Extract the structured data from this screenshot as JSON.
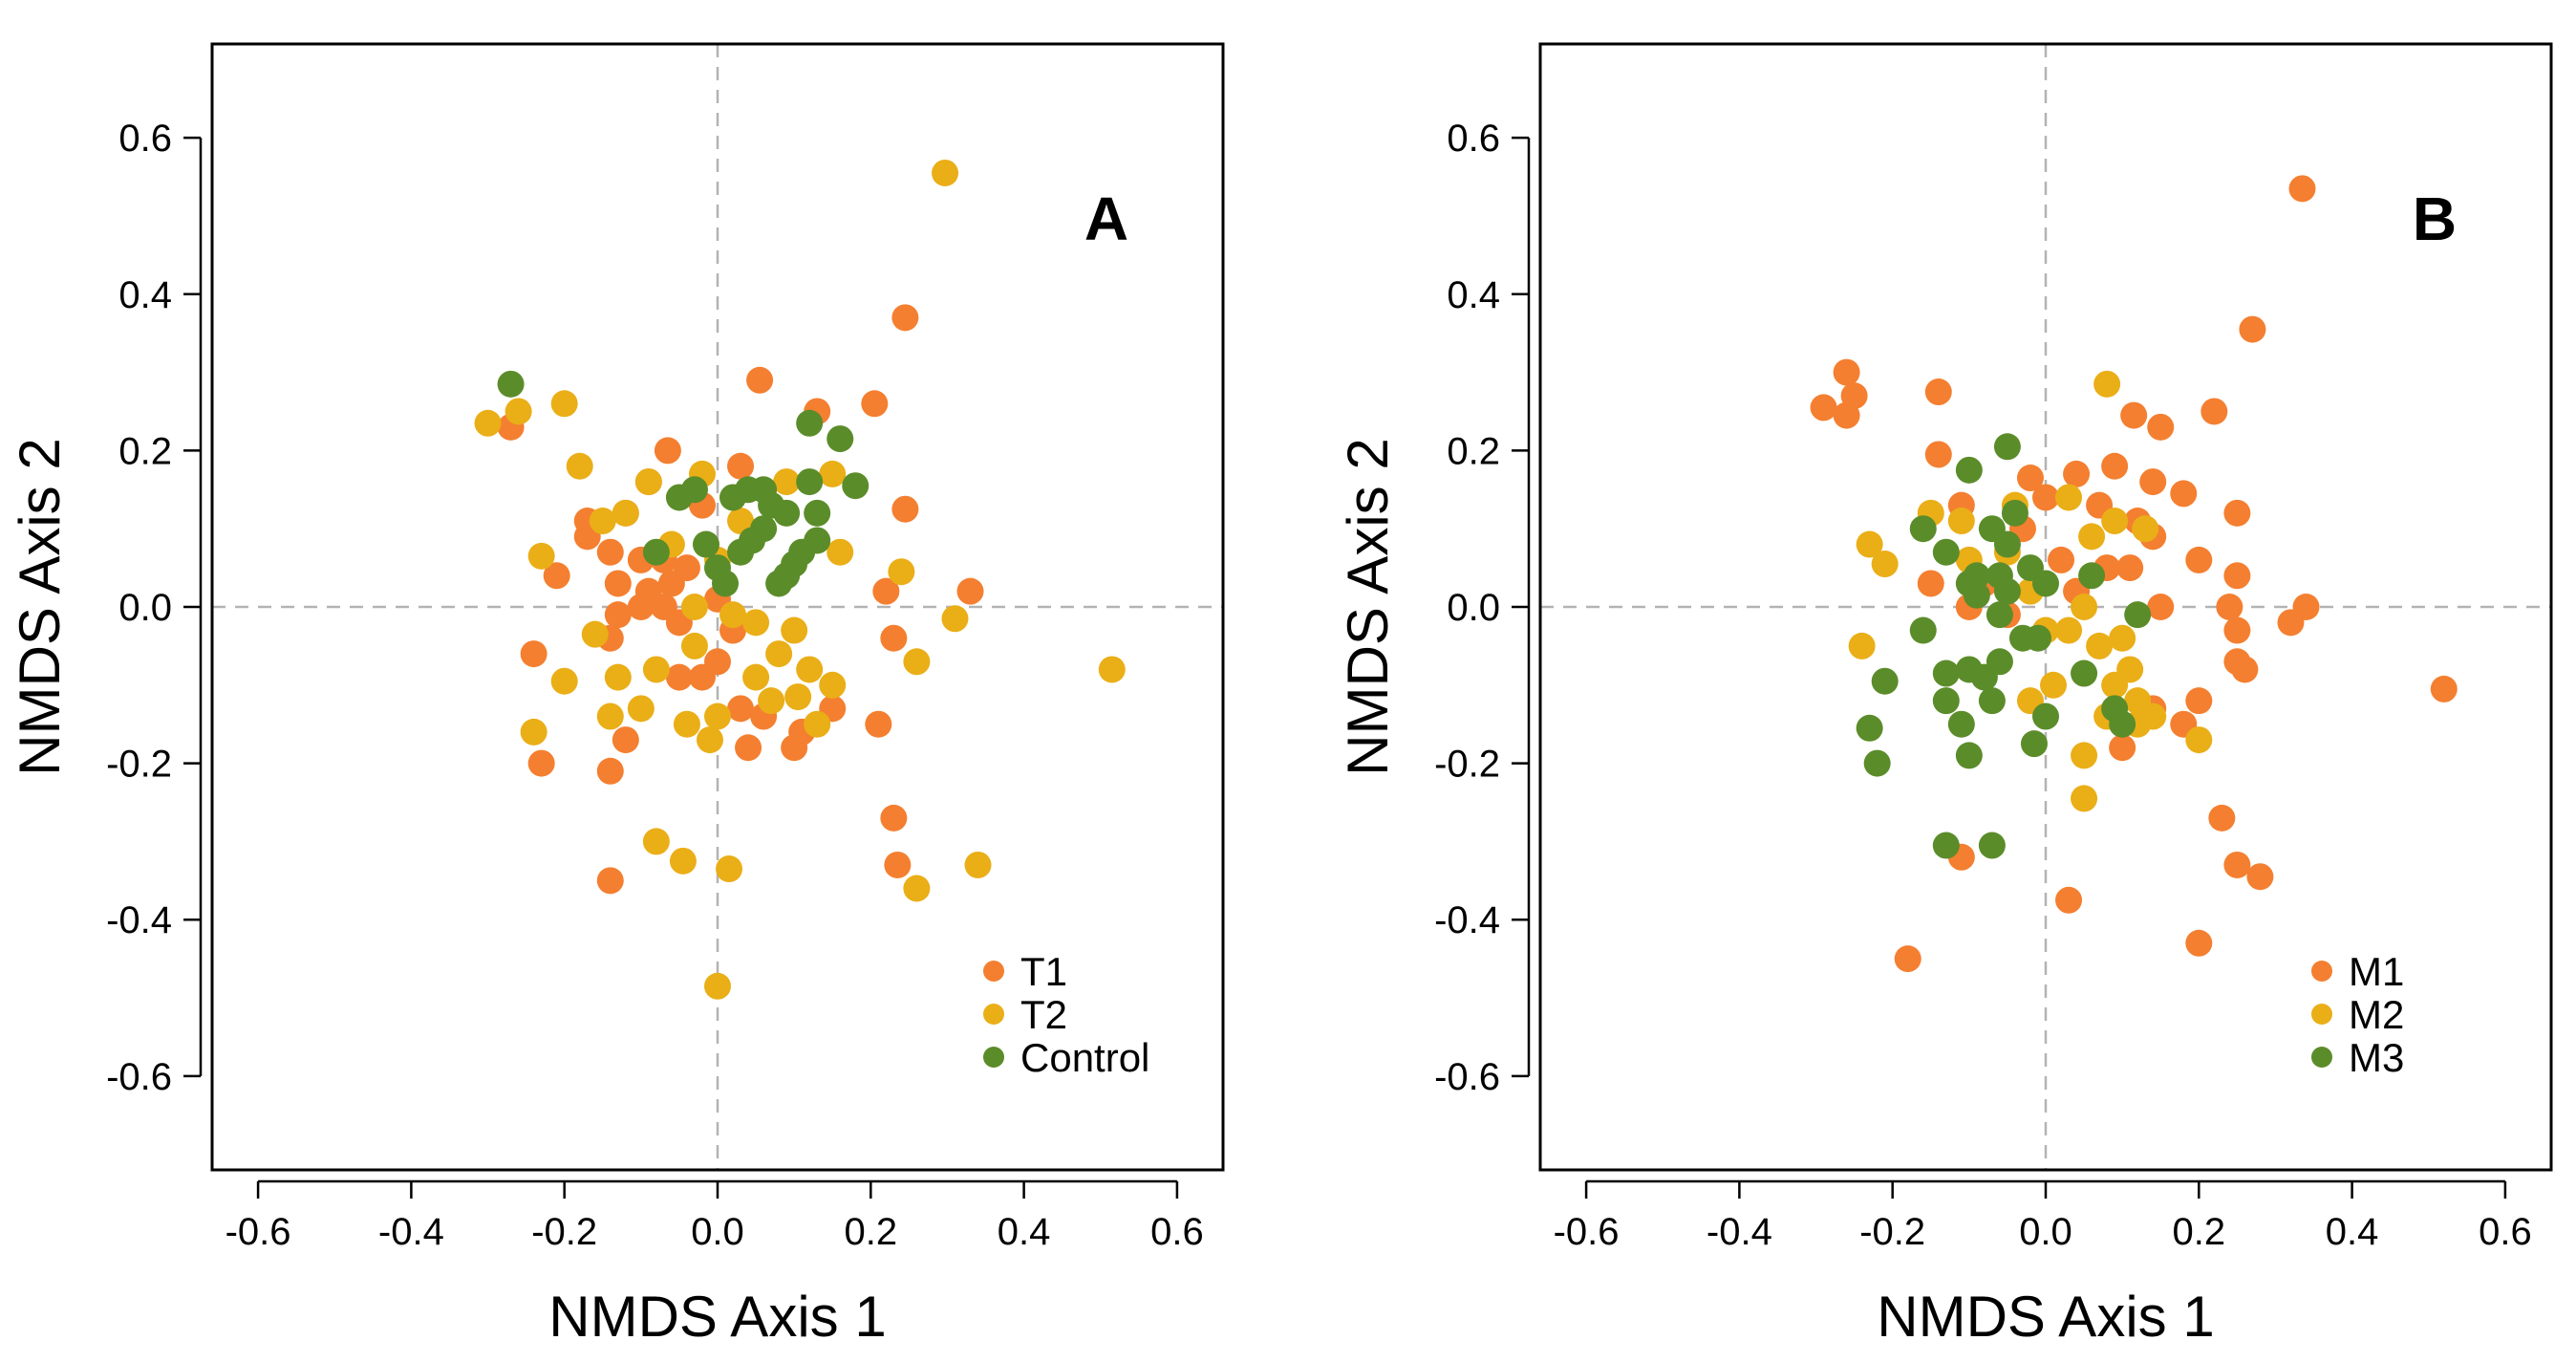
{
  "chart_data": [
    {
      "type": "scatter",
      "panel_label": "A",
      "xlabel": "NMDS Axis 1",
      "ylabel": "NMDS Axis 2",
      "xlim": [
        -0.66,
        0.66
      ],
      "ylim": [
        -0.72,
        0.72
      ],
      "xticks": [
        -0.6,
        -0.4,
        -0.2,
        0.0,
        0.2,
        0.4,
        0.6
      ],
      "yticks": [
        -0.6,
        -0.4,
        -0.2,
        0.0,
        0.2,
        0.4,
        0.6
      ],
      "xtick_labels": [
        "-0.6",
        "-0.4",
        "-0.2",
        "0.0",
        "0.2",
        "0.4",
        "0.6"
      ],
      "ytick_labels": [
        "-0.6",
        "-0.4",
        "-0.2",
        "0.0",
        "0.2",
        "0.4",
        "0.6"
      ],
      "reference_lines": {
        "x": 0,
        "y": 0
      },
      "legend_position": "bottom-right",
      "series": [
        {
          "name": "T1",
          "color": "#F47F30",
          "points": [
            [
              0.245,
              0.37
            ],
            [
              0.055,
              0.29
            ],
            [
              0.205,
              0.26
            ],
            [
              0.13,
              0.25
            ],
            [
              -0.065,
              0.2
            ],
            [
              -0.27,
              0.23
            ],
            [
              -0.09,
              0.16
            ],
            [
              -0.02,
              0.13
            ],
            [
              0.03,
              0.18
            ],
            [
              -0.17,
              0.11
            ],
            [
              -0.12,
              0.12
            ],
            [
              -0.17,
              0.09
            ],
            [
              -0.14,
              0.07
            ],
            [
              -0.1,
              0.06
            ],
            [
              -0.07,
              0.06
            ],
            [
              -0.04,
              0.05
            ],
            [
              -0.21,
              0.04
            ],
            [
              -0.13,
              0.03
            ],
            [
              -0.09,
              0.02
            ],
            [
              -0.06,
              0.03
            ],
            [
              -0.1,
              0.0
            ],
            [
              -0.07,
              0.0
            ],
            [
              -0.13,
              -0.01
            ],
            [
              -0.05,
              -0.02
            ],
            [
              -0.14,
              -0.04
            ],
            [
              -0.05,
              -0.09
            ],
            [
              -0.02,
              -0.09
            ],
            [
              0.0,
              -0.07
            ],
            [
              0.03,
              -0.13
            ],
            [
              0.06,
              -0.14
            ],
            [
              0.11,
              -0.16
            ],
            [
              0.15,
              -0.13
            ],
            [
              0.21,
              -0.15
            ],
            [
              0.23,
              -0.04
            ],
            [
              0.22,
              0.02
            ],
            [
              0.245,
              0.125
            ],
            [
              0.33,
              0.02
            ],
            [
              -0.24,
              -0.06
            ],
            [
              -0.23,
              -0.2
            ],
            [
              -0.14,
              -0.21
            ],
            [
              -0.12,
              -0.17
            ],
            [
              0.04,
              -0.18
            ],
            [
              0.1,
              -0.18
            ],
            [
              -0.14,
              -0.35
            ],
            [
              0.23,
              -0.27
            ],
            [
              0.235,
              -0.33
            ],
            [
              0.0,
              0.01
            ],
            [
              0.02,
              -0.03
            ]
          ]
        },
        {
          "name": "T2",
          "color": "#EAAE17",
          "points": [
            [
              0.297,
              0.555
            ],
            [
              -0.3,
              0.235
            ],
            [
              -0.2,
              0.26
            ],
            [
              -0.26,
              0.25
            ],
            [
              -0.18,
              0.18
            ],
            [
              -0.15,
              0.11
            ],
            [
              -0.12,
              0.12
            ],
            [
              -0.06,
              0.08
            ],
            [
              -0.09,
              0.16
            ],
            [
              -0.02,
              0.17
            ],
            [
              0.0,
              0.06
            ],
            [
              0.03,
              0.11
            ],
            [
              0.09,
              0.16
            ],
            [
              0.15,
              0.17
            ],
            [
              0.16,
              0.07
            ],
            [
              -0.23,
              0.065
            ],
            [
              0.02,
              -0.01
            ],
            [
              -0.16,
              -0.035
            ],
            [
              -0.13,
              -0.09
            ],
            [
              -0.08,
              -0.08
            ],
            [
              -0.1,
              -0.13
            ],
            [
              -0.04,
              -0.15
            ],
            [
              0.0,
              -0.14
            ],
            [
              -0.01,
              -0.17
            ],
            [
              -0.03,
              -0.05
            ],
            [
              0.05,
              -0.02
            ],
            [
              0.08,
              -0.06
            ],
            [
              0.1,
              -0.03
            ],
            [
              0.12,
              -0.08
            ],
            [
              0.15,
              -0.1
            ],
            [
              0.07,
              -0.12
            ],
            [
              0.13,
              -0.15
            ],
            [
              0.05,
              -0.09
            ],
            [
              0.24,
              0.045
            ],
            [
              0.26,
              -0.07
            ],
            [
              0.31,
              -0.015
            ],
            [
              0.515,
              -0.08
            ],
            [
              -0.24,
              -0.16
            ],
            [
              -0.2,
              -0.095
            ],
            [
              -0.14,
              -0.14
            ],
            [
              -0.08,
              -0.3
            ],
            [
              -0.045,
              -0.325
            ],
            [
              0.015,
              -0.335
            ],
            [
              0.26,
              -0.36
            ],
            [
              0.34,
              -0.33
            ],
            [
              0.0,
              -0.485
            ],
            [
              0.105,
              -0.115
            ],
            [
              -0.03,
              0.0
            ]
          ]
        },
        {
          "name": "Control",
          "color": "#5B8C2A",
          "points": [
            [
              -0.27,
              0.285
            ],
            [
              0.12,
              0.235
            ],
            [
              0.16,
              0.215
            ],
            [
              0.18,
              0.155
            ],
            [
              0.12,
              0.16
            ],
            [
              0.13,
              0.12
            ],
            [
              0.09,
              0.12
            ],
            [
              0.07,
              0.13
            ],
            [
              0.04,
              0.15
            ],
            [
              0.06,
              0.1
            ],
            [
              0.03,
              0.07
            ],
            [
              0.0,
              0.05
            ],
            [
              0.01,
              0.03
            ],
            [
              -0.05,
              0.14
            ],
            [
              -0.08,
              0.07
            ],
            [
              0.09,
              0.04
            ],
            [
              0.11,
              0.07
            ],
            [
              0.06,
              0.15
            ],
            [
              -0.03,
              0.15
            ],
            [
              0.02,
              0.14
            ],
            [
              0.13,
              0.085
            ],
            [
              0.1,
              0.055
            ],
            [
              0.08,
              0.03
            ],
            [
              0.045,
              0.085
            ],
            [
              -0.015,
              0.08
            ]
          ]
        }
      ]
    },
    {
      "type": "scatter",
      "panel_label": "B",
      "xlabel": "NMDS Axis 1",
      "ylabel": "NMDS Axis 2",
      "xlim": [
        -0.66,
        0.66
      ],
      "ylim": [
        -0.72,
        0.72
      ],
      "xticks": [
        -0.6,
        -0.4,
        -0.2,
        0.0,
        0.2,
        0.4,
        0.6
      ],
      "yticks": [
        -0.6,
        -0.4,
        -0.2,
        0.0,
        0.2,
        0.4,
        0.6
      ],
      "xtick_labels": [
        "-0.6",
        "-0.4",
        "-0.2",
        "0.0",
        "0.2",
        "0.4",
        "0.6"
      ],
      "ytick_labels": [
        "-0.6",
        "-0.4",
        "-0.2",
        "0.0",
        "0.2",
        "0.4",
        "0.6"
      ],
      "reference_lines": {
        "x": 0,
        "y": 0
      },
      "legend_position": "bottom-right",
      "series": [
        {
          "name": "M1",
          "color": "#F47F30",
          "points": [
            [
              0.335,
              0.535
            ],
            [
              0.27,
              0.355
            ],
            [
              -0.26,
              0.3
            ],
            [
              -0.25,
              0.27
            ],
            [
              -0.29,
              0.255
            ],
            [
              -0.26,
              0.245
            ],
            [
              -0.14,
              0.275
            ],
            [
              0.115,
              0.245
            ],
            [
              0.15,
              0.23
            ],
            [
              0.22,
              0.25
            ],
            [
              -0.14,
              0.195
            ],
            [
              -0.02,
              0.165
            ],
            [
              0.04,
              0.17
            ],
            [
              0.09,
              0.18
            ],
            [
              0.14,
              0.16
            ],
            [
              0.18,
              0.145
            ],
            [
              0.25,
              0.12
            ],
            [
              -0.11,
              0.13
            ],
            [
              0.0,
              0.14
            ],
            [
              0.07,
              0.13
            ],
            [
              0.12,
              0.11
            ],
            [
              0.14,
              0.09
            ],
            [
              -0.03,
              0.1
            ],
            [
              0.02,
              0.06
            ],
            [
              0.08,
              0.05
            ],
            [
              0.11,
              0.05
            ],
            [
              0.2,
              0.06
            ],
            [
              0.25,
              0.04
            ],
            [
              0.24,
              0.0
            ],
            [
              0.34,
              0.0
            ],
            [
              0.32,
              -0.02
            ],
            [
              0.25,
              -0.03
            ],
            [
              0.25,
              -0.07
            ],
            [
              0.26,
              -0.08
            ],
            [
              0.52,
              -0.105
            ],
            [
              0.14,
              -0.13
            ],
            [
              0.2,
              -0.12
            ],
            [
              0.1,
              -0.18
            ],
            [
              0.18,
              -0.15
            ],
            [
              -0.15,
              0.03
            ],
            [
              -0.08,
              0.03
            ],
            [
              -0.1,
              0.0
            ],
            [
              -0.05,
              -0.01
            ],
            [
              0.23,
              -0.27
            ],
            [
              0.25,
              -0.33
            ],
            [
              0.28,
              -0.345
            ],
            [
              -0.11,
              -0.32
            ],
            [
              0.03,
              -0.375
            ],
            [
              -0.18,
              -0.45
            ],
            [
              0.2,
              -0.43
            ],
            [
              0.04,
              0.02
            ],
            [
              0.15,
              0.0
            ]
          ]
        },
        {
          "name": "M2",
          "color": "#EAAE17",
          "points": [
            [
              0.08,
              0.285
            ],
            [
              -0.15,
              0.12
            ],
            [
              -0.11,
              0.11
            ],
            [
              -0.04,
              0.13
            ],
            [
              0.03,
              0.14
            ],
            [
              0.06,
              0.09
            ],
            [
              0.09,
              0.11
            ],
            [
              0.13,
              0.1
            ],
            [
              -0.23,
              0.08
            ],
            [
              -0.21,
              0.055
            ],
            [
              -0.1,
              0.06
            ],
            [
              -0.05,
              0.07
            ],
            [
              -0.02,
              0.02
            ],
            [
              0.05,
              0.0
            ],
            [
              0.03,
              -0.03
            ],
            [
              0.07,
              -0.05
            ],
            [
              0.1,
              -0.04
            ],
            [
              0.11,
              -0.08
            ],
            [
              0.09,
              -0.1
            ],
            [
              0.08,
              -0.14
            ],
            [
              0.12,
              -0.15
            ],
            [
              0.14,
              -0.14
            ],
            [
              0.01,
              -0.1
            ],
            [
              -0.02,
              -0.12
            ],
            [
              0.05,
              -0.19
            ],
            [
              0.05,
              -0.245
            ],
            [
              0.2,
              -0.17
            ],
            [
              -0.24,
              -0.05
            ],
            [
              0.12,
              -0.12
            ],
            [
              0.0,
              -0.03
            ]
          ]
        },
        {
          "name": "M3",
          "color": "#5B8C2A",
          "points": [
            [
              -0.05,
              0.205
            ],
            [
              -0.1,
              0.175
            ],
            [
              -0.16,
              0.1
            ],
            [
              -0.13,
              0.07
            ],
            [
              -0.09,
              0.04
            ],
            [
              -0.05,
              0.08
            ],
            [
              -0.07,
              0.1
            ],
            [
              -0.04,
              0.12
            ],
            [
              -0.02,
              0.05
            ],
            [
              0.0,
              0.03
            ],
            [
              -0.05,
              0.02
            ],
            [
              -0.09,
              0.015
            ],
            [
              -0.1,
              0.03
            ],
            [
              -0.06,
              -0.01
            ],
            [
              -0.03,
              -0.04
            ],
            [
              -0.01,
              -0.04
            ],
            [
              -0.06,
              -0.07
            ],
            [
              -0.08,
              -0.09
            ],
            [
              -0.1,
              -0.08
            ],
            [
              -0.07,
              -0.12
            ],
            [
              -0.11,
              -0.15
            ],
            [
              -0.13,
              -0.085
            ],
            [
              -0.13,
              -0.12
            ],
            [
              -0.16,
              -0.03
            ],
            [
              -0.21,
              -0.095
            ],
            [
              -0.23,
              -0.155
            ],
            [
              -0.22,
              -0.2
            ],
            [
              -0.1,
              -0.19
            ],
            [
              -0.13,
              -0.305
            ],
            [
              -0.07,
              -0.305
            ],
            [
              0.0,
              -0.14
            ],
            [
              -0.015,
              -0.175
            ],
            [
              0.05,
              -0.085
            ],
            [
              0.09,
              -0.13
            ],
            [
              0.1,
              -0.15
            ],
            [
              0.12,
              -0.01
            ],
            [
              0.06,
              0.04
            ],
            [
              -0.06,
              0.04
            ]
          ]
        }
      ]
    }
  ]
}
